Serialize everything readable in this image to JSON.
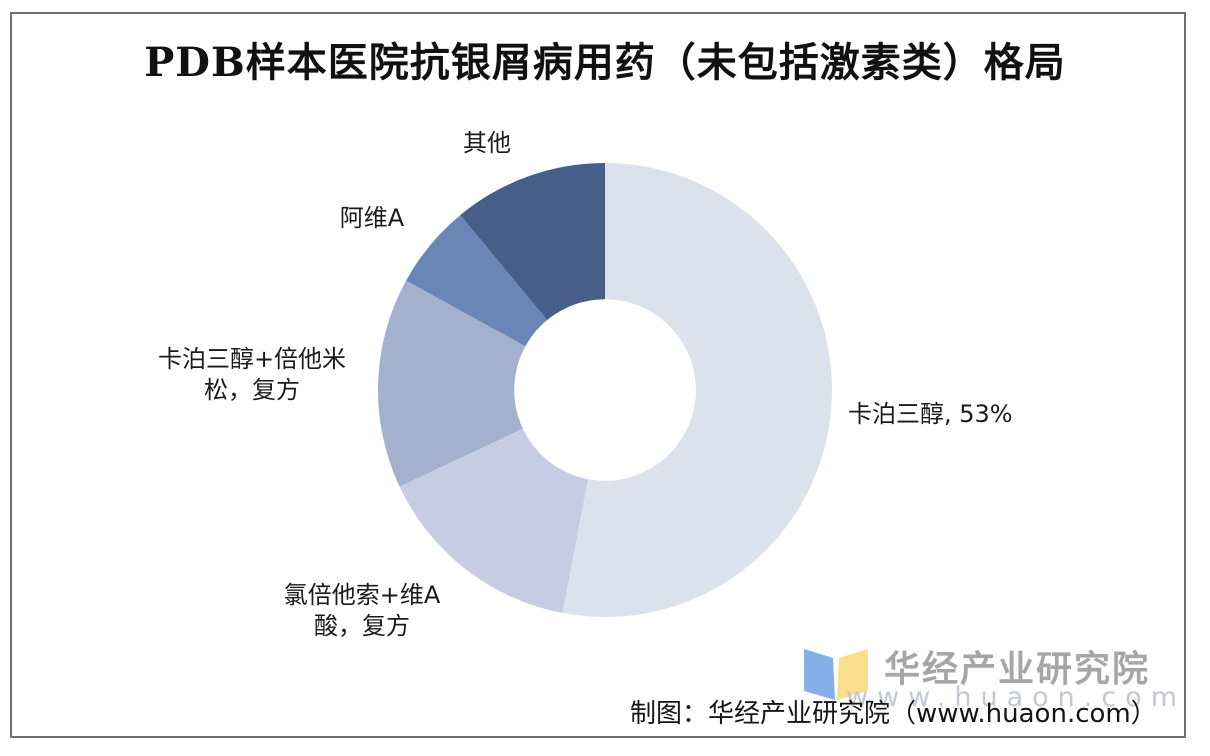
{
  "page": {
    "title": "PDB样本医院抗银屑病用药（未包括激素类）格局",
    "caption": "制图：华经产业研究院（www.huaon.com）"
  },
  "watermark": {
    "brand": "华经产业研究院",
    "url": "www.huaon.com",
    "logo_blue": "#84AFE9",
    "logo_yellow": "#F9DE8C"
  },
  "chart_data": {
    "type": "pie",
    "subtype": "donut",
    "title": "PDB样本医院抗银屑病用药（未包括激素类）格局",
    "unit": "percent",
    "direction": "clockwise",
    "start_angle_deg": 0,
    "inner_radius_ratio": 0.4,
    "legend": "none",
    "data_label_shown": "卡泊三醇, 53%",
    "slices": [
      {
        "id": "calcipotriol",
        "label": "卡泊三醇",
        "value": 53,
        "color": "#DBE1ED"
      },
      {
        "id": "clobetasol-retinoic-compound",
        "label": "氯倍他索+维A酸，复方",
        "value": 15,
        "color": "#C4CDE1"
      },
      {
        "id": "calcipotriol-betamethasone-compound",
        "label": "卡泊三醇+倍他米松，复方",
        "value": 15,
        "color": "#A3B1CF"
      },
      {
        "id": "acitretin",
        "label": "阿维A",
        "value": 6,
        "color": "#6A86B6"
      },
      {
        "id": "other",
        "label": "其他",
        "value": 11,
        "color": "#475E88"
      }
    ],
    "callouts": [
      {
        "text": "其他"
      },
      {
        "text": "阿维A"
      },
      {
        "line1": "卡泊三醇+倍他米",
        "line2": "松，复方"
      },
      {
        "line1": "氯倍他索+维A",
        "line2": "酸，复方"
      },
      {
        "text": "卡泊三醇, 53%"
      }
    ]
  }
}
